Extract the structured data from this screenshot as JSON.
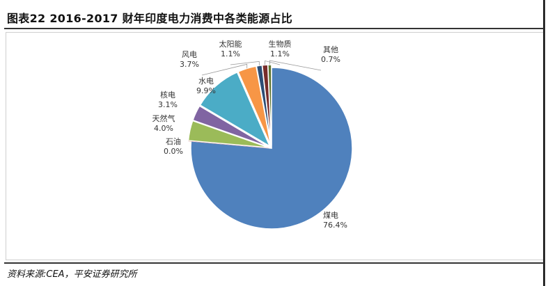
{
  "header": {
    "title": "图表22    2016-2017 财年印度电力消费中各类能源占比"
  },
  "footer": {
    "source": "资料来源:CEA，平安证券研究所"
  },
  "chart_data": {
    "type": "pie",
    "title": "",
    "slices": [
      {
        "label": "煤电",
        "value": 76.4,
        "value_label": "76.4%",
        "color": "#4f81bd"
      },
      {
        "label": "石油",
        "value": 0.0,
        "value_label": "0.0%",
        "color": "#c0504d"
      },
      {
        "label": "天然气",
        "value": 4.0,
        "value_label": "4.0%",
        "color": "#9bbb59"
      },
      {
        "label": "核电",
        "value": 3.1,
        "value_label": "3.1%",
        "color": "#8064a2"
      },
      {
        "label": "水电",
        "value": 9.9,
        "value_label": "9.9%",
        "color": "#4bacc6"
      },
      {
        "label": "风电",
        "value": 3.7,
        "value_label": "3.7%",
        "color": "#f79646"
      },
      {
        "label": "太阳能",
        "value": 1.1,
        "value_label": "1.1%",
        "color": "#2c4d75"
      },
      {
        "label": "生物质",
        "value": 1.1,
        "value_label": "1.1%",
        "color": "#772c2a"
      },
      {
        "label": "其他",
        "value": 0.7,
        "value_label": "0.7%",
        "color": "#5f7530"
      }
    ],
    "start_angle_note": "clockwise from 12 o'clock, 煤电 first",
    "data_labels": "outside, name above percentage"
  }
}
